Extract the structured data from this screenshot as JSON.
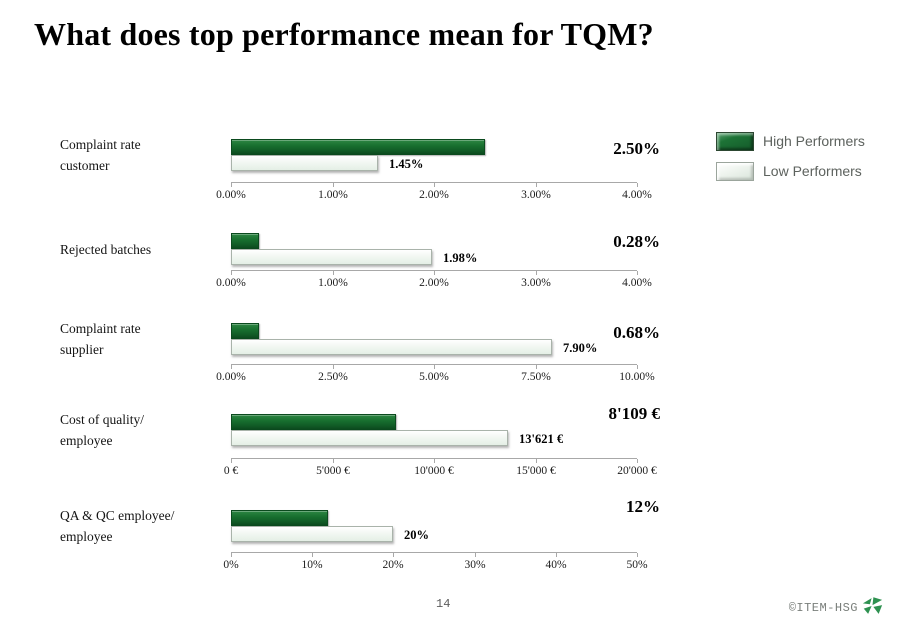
{
  "title": "What does top performance mean for TQM?",
  "legend": {
    "high": "High Performers",
    "low": "Low Performers"
  },
  "colors": {
    "high_performer_bar": "#18702f",
    "low_performer_bar": "#e9f2ea",
    "axis": "#a8a8a8",
    "legend_text": "#5d625e",
    "logo_green": "#2e9150"
  },
  "footer": {
    "page_number": "14",
    "copyright": "©ITEM-HSG"
  },
  "chart_data": {
    "type": "bar",
    "orientation": "horizontal",
    "legend_position": "top-right",
    "series": [
      "High Performers",
      "Low Performers"
    ],
    "grid": false,
    "charts": [
      {
        "label": "Complaint rate\ncustomer",
        "high_value": 2.5,
        "high_label": "2.50%",
        "low_value": 1.45,
        "low_label": "1.45%",
        "axis_min": 0,
        "axis_max": 4,
        "ticks": [
          "0.00%",
          "1.00%",
          "2.00%",
          "3.00%",
          "4.00%"
        ]
      },
      {
        "label": "Rejected batches",
        "high_value": 0.28,
        "high_label": "0.28%",
        "low_value": 1.98,
        "low_label": "1.98%",
        "axis_min": 0,
        "axis_max": 4,
        "ticks": [
          "0.00%",
          "1.00%",
          "2.00%",
          "3.00%",
          "4.00%"
        ]
      },
      {
        "label": "Complaint rate\nsupplier",
        "high_value": 0.68,
        "high_label": "0.68%",
        "low_value": 7.9,
        "low_label": "7.90%",
        "axis_min": 0,
        "axis_max": 10,
        "ticks": [
          "0.00%",
          "2.50%",
          "5.00%",
          "7.50%",
          "10.00%"
        ]
      },
      {
        "label": "Cost of quality/\nemployee",
        "high_value": 8109,
        "high_label": "8'109 €",
        "low_value": 13621,
        "low_label": "13'621 €",
        "axis_min": 0,
        "axis_max": 20000,
        "ticks": [
          "0 €",
          "5'000 €",
          "10'000 €",
          "15'000 €",
          "20'000 €"
        ]
      },
      {
        "label": "QA & QC employee/\nemployee",
        "high_value": 12,
        "high_label": "12%",
        "low_value": 20,
        "low_label": "20%",
        "axis_min": 0,
        "axis_max": 50,
        "ticks": [
          "0%",
          "10%",
          "20%",
          "30%",
          "40%",
          "50%"
        ]
      }
    ]
  }
}
